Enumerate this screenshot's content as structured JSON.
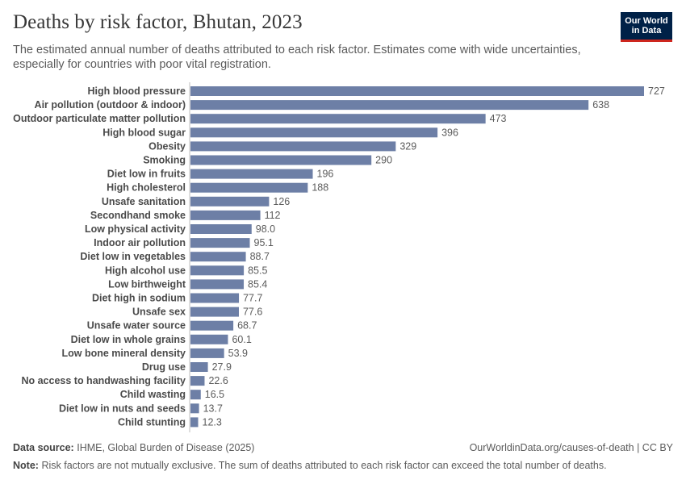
{
  "header": {
    "title": "Deaths by risk factor, Bhutan, 2023",
    "subtitle": "The estimated annual number of deaths attributed to each risk factor. Estimates come with wide uncertainties, especially for countries with poor vital registration."
  },
  "logo": {
    "line1": "Our World",
    "line2": "in Data",
    "bg_color": "#002147",
    "accent_color": "#ce261e"
  },
  "footer": {
    "source_label": "Data source:",
    "source_text": "IHME, Global Burden of Disease (2025)",
    "url_text": "OurWorldinData.org/causes-of-death | CC BY",
    "note_label": "Note:",
    "note_text": "Risk factors are not mutually exclusive. The sum of deaths attributed to each risk factor can exceed the total number of deaths."
  },
  "chart_data": {
    "type": "bar",
    "orientation": "horizontal",
    "title": "Deaths by risk factor, Bhutan, 2023",
    "xlabel": "",
    "ylabel": "",
    "bar_color": "#6d7fa6",
    "categories": [
      "High blood pressure",
      "Air pollution (outdoor & indoor)",
      "Outdoor particulate matter pollution",
      "High blood sugar",
      "Obesity",
      "Smoking",
      "Diet low in fruits",
      "High cholesterol",
      "Unsafe sanitation",
      "Secondhand smoke",
      "Low physical activity",
      "Indoor air pollution",
      "Diet low in vegetables",
      "High alcohol use",
      "Low birthweight",
      "Diet high in sodium",
      "Unsafe sex",
      "Unsafe water source",
      "Diet low in whole grains",
      "Low bone mineral density",
      "Drug use",
      "No access to handwashing facility",
      "Child wasting",
      "Diet low in nuts and seeds",
      "Child stunting"
    ],
    "values": [
      727,
      638,
      473,
      396,
      329,
      290,
      196,
      188,
      126,
      112,
      98.0,
      95.1,
      88.7,
      85.5,
      85.4,
      77.7,
      77.6,
      68.7,
      60.1,
      53.9,
      27.9,
      22.6,
      16.5,
      13.7,
      12.3
    ],
    "value_labels": [
      "727",
      "638",
      "473",
      "396",
      "329",
      "290",
      "196",
      "188",
      "126",
      "112",
      "98.0",
      "95.1",
      "88.7",
      "85.5",
      "85.4",
      "77.7",
      "77.6",
      "68.7",
      "60.1",
      "53.9",
      "27.9",
      "22.6",
      "16.5",
      "13.7",
      "12.3"
    ],
    "xlim": [
      0,
      727
    ]
  }
}
